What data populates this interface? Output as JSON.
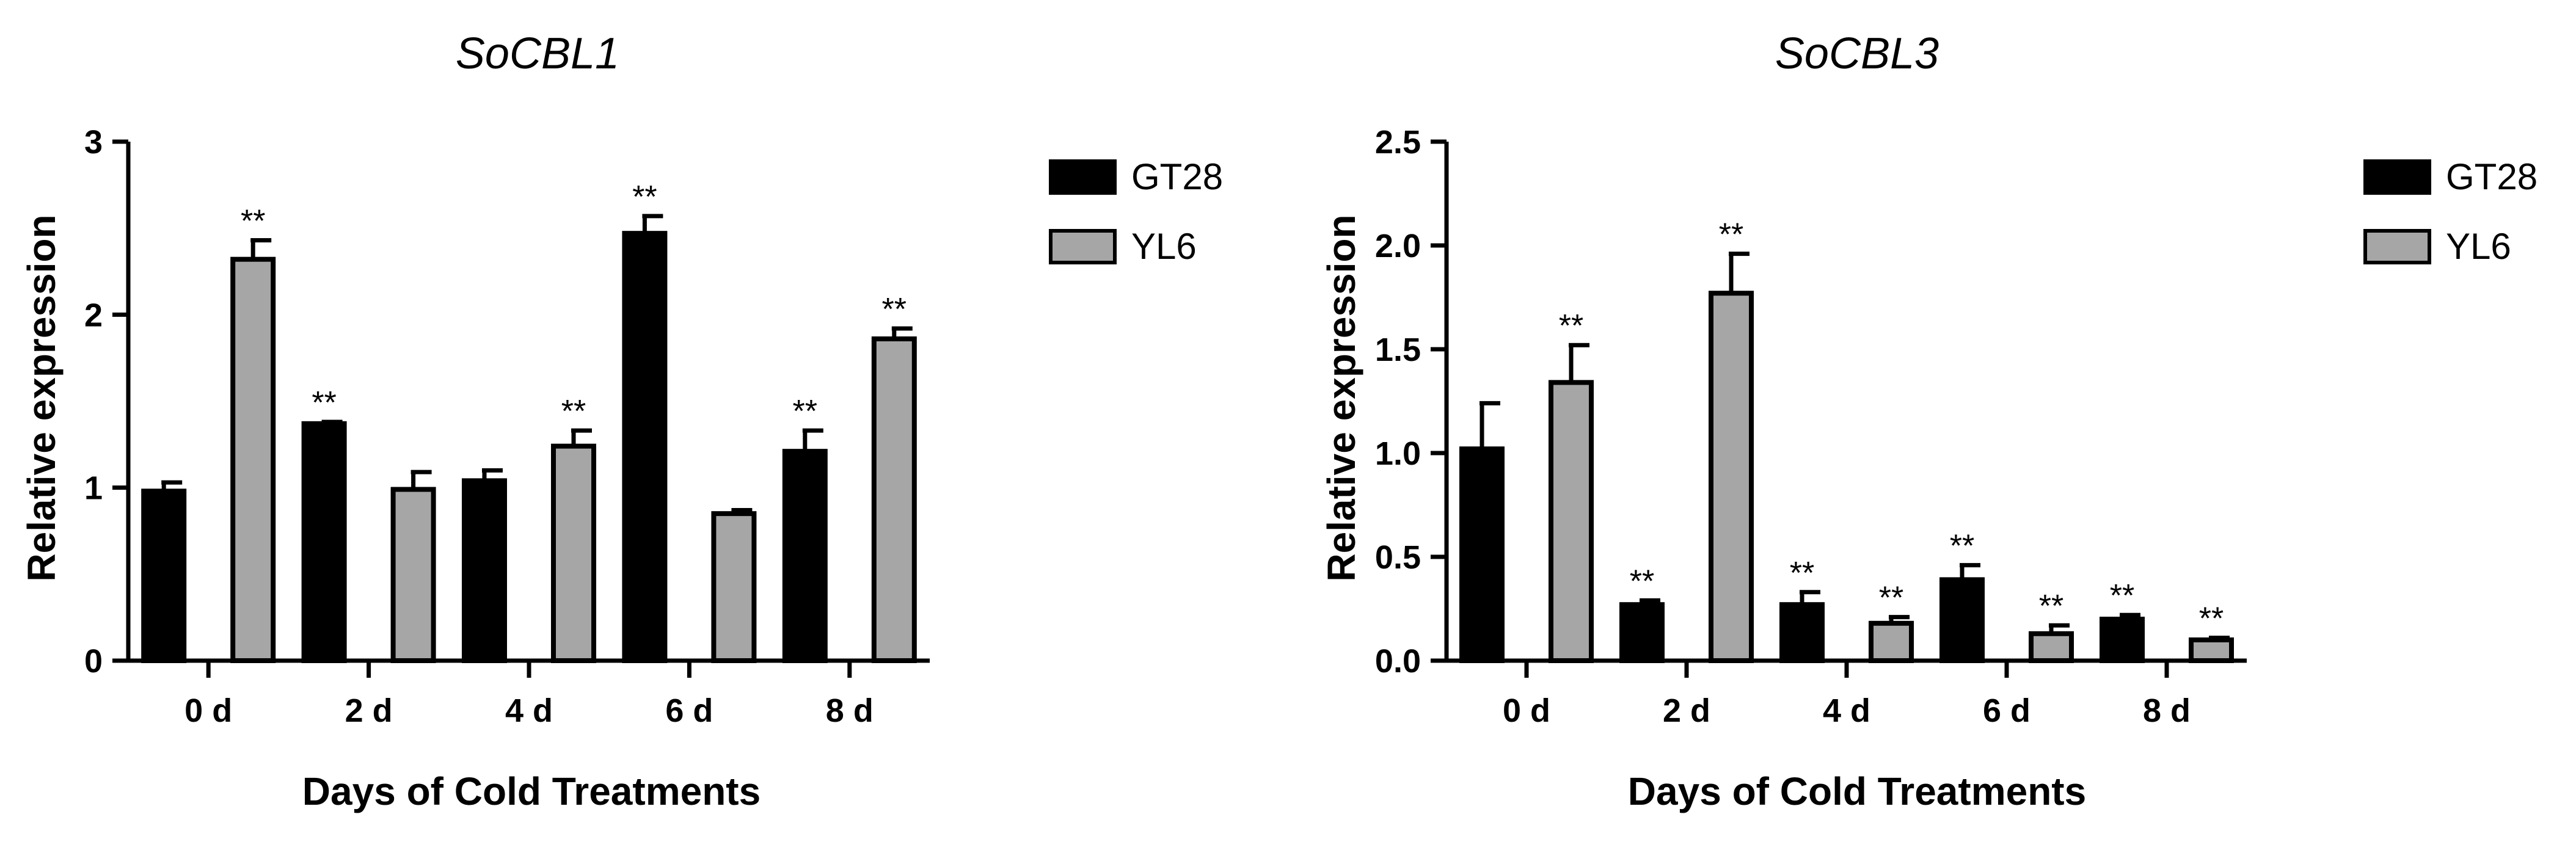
{
  "chart_data": [
    {
      "type": "bar",
      "title": "SoCBL1",
      "xlabel": "Days of Cold Treatments",
      "ylabel": "Relative expression",
      "categories": [
        "0 d",
        "2 d",
        "4 d",
        "6 d",
        "8 d"
      ],
      "ylim": [
        0,
        3
      ],
      "yticks": [
        "0",
        "1",
        "2",
        "3"
      ],
      "series": [
        {
          "name": "GT28",
          "color": "#000000",
          "values": [
            0.98,
            1.37,
            1.04,
            2.47,
            1.21
          ],
          "errors": [
            0.05,
            0.01,
            0.06,
            0.1,
            0.12
          ],
          "significance": [
            "",
            "**",
            "",
            "**",
            "**"
          ]
        },
        {
          "name": "YL6",
          "color": "#a6a6a6",
          "values": [
            2.32,
            0.99,
            1.24,
            0.85,
            1.86
          ],
          "errors": [
            0.11,
            0.1,
            0.09,
            0.02,
            0.06
          ],
          "significance": [
            "**",
            "",
            "**",
            "",
            "**"
          ]
        }
      ],
      "legend": "right"
    },
    {
      "type": "bar",
      "title": "SoCBL3",
      "xlabel": "Days of Cold Treatments",
      "ylabel": "Relative expression",
      "categories": [
        "0 d",
        "2 d",
        "4 d",
        "6 d",
        "8 d"
      ],
      "ylim": [
        0,
        2.5
      ],
      "yticks": [
        "0.0",
        "0.5",
        "1.0",
        "1.5",
        "2.0",
        "2.5"
      ],
      "series": [
        {
          "name": "GT28",
          "color": "#000000",
          "values": [
            1.02,
            0.27,
            0.27,
            0.39,
            0.2
          ],
          "errors": [
            0.22,
            0.02,
            0.06,
            0.07,
            0.02
          ],
          "significance": [
            "",
            "**",
            "**",
            "**",
            "**"
          ]
        },
        {
          "name": "YL6",
          "color": "#a6a6a6",
          "values": [
            1.34,
            1.77,
            0.18,
            0.13,
            0.1
          ],
          "errors": [
            0.18,
            0.19,
            0.03,
            0.04,
            0.01
          ],
          "significance": [
            "**",
            "**",
            "**",
            "**",
            "**"
          ]
        }
      ],
      "legend": "right"
    }
  ]
}
